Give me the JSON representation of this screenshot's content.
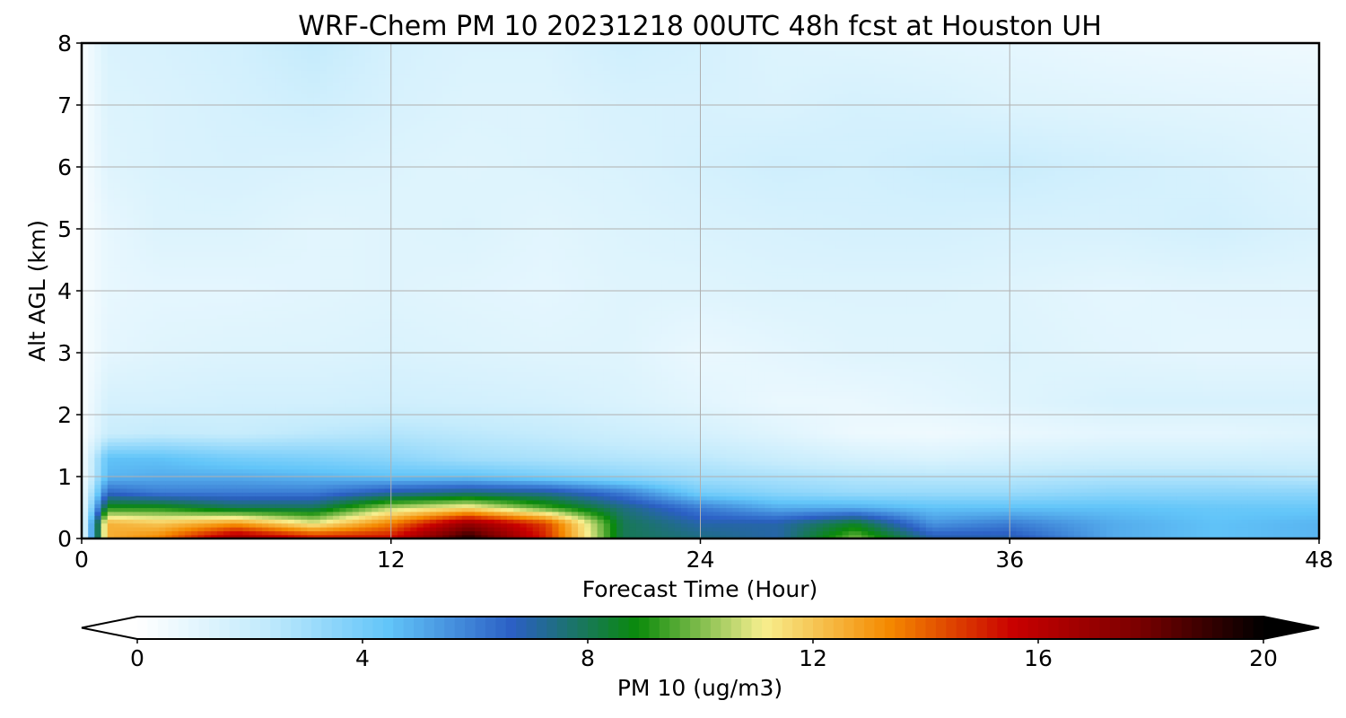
{
  "chart_data": {
    "type": "heatmap",
    "title": "WRF-Chem PM 10  20231218 00UTC 48h fcst at Houston UH",
    "xlabel": "Forecast Time (Hour)",
    "ylabel": "Alt AGL (km)",
    "xlim": [
      0,
      48
    ],
    "ylim": [
      0,
      8
    ],
    "xticks": [
      0,
      12,
      24,
      36,
      48
    ],
    "yticks": [
      0,
      1,
      2,
      3,
      4,
      5,
      6,
      7,
      8
    ],
    "grid": true,
    "colorbar": {
      "label": "PM 10  (ug/m3)",
      "range": [
        0,
        20
      ],
      "ticks": [
        0,
        4,
        8,
        12,
        16,
        20
      ],
      "extend": "both",
      "colors": [
        "#ffffff",
        "#c4ebfc",
        "#62c5f9",
        "#2b5fc4",
        "#0a8a0a",
        "#f7ef8f",
        "#f58a00",
        "#c90000",
        "#7a0000",
        "#000000"
      ]
    },
    "x_hours": [
      0,
      1,
      3,
      6,
      9,
      12,
      15,
      18,
      21,
      24,
      27,
      30,
      33,
      36,
      40,
      44,
      48
    ],
    "z_km": [
      0,
      0.25,
      0.5,
      0.75,
      1.0,
      1.3,
      1.7,
      2.2,
      3.0,
      4.0,
      5.0,
      6.0,
      7.0,
      8.0
    ],
    "values": [
      [
        0.4,
        12.5,
        13.5,
        17.0,
        15.5,
        15.5,
        19.5,
        15.0,
        8.0,
        7.5,
        7.0,
        10.0,
        7.0,
        7.0,
        5.0,
        4.5,
        4.8
      ],
      [
        0.4,
        12.5,
        12.0,
        13.0,
        11.0,
        13.5,
        17.0,
        14.5,
        8.0,
        7.0,
        7.0,
        8.5,
        5.5,
        6.0,
        5.0,
        4.5,
        4.8
      ],
      [
        0.4,
        9.0,
        9.0,
        8.0,
        8.0,
        10.5,
        11.5,
        9.5,
        7.5,
        6.0,
        5.0,
        5.0,
        4.5,
        4.5,
        4.5,
        4.3,
        4.3
      ],
      [
        0.4,
        6.5,
        6.0,
        6.0,
        6.0,
        7.0,
        7.5,
        7.2,
        6.0,
        4.0,
        3.5,
        3.2,
        3.2,
        3.2,
        3.5,
        3.5,
        3.5
      ],
      [
        0.3,
        4.8,
        5.0,
        5.0,
        4.8,
        4.5,
        4.5,
        4.0,
        3.5,
        3.0,
        2.8,
        2.6,
        2.5,
        2.5,
        2.7,
        2.7,
        2.5
      ],
      [
        0.3,
        4.5,
        4.5,
        4.0,
        3.8,
        3.5,
        3.0,
        2.8,
        2.6,
        2.4,
        2.0,
        1.6,
        1.4,
        1.6,
        1.8,
        1.8,
        1.8
      ],
      [
        0.2,
        2.0,
        2.2,
        2.1,
        2.4,
        2.6,
        2.4,
        2.2,
        1.9,
        1.6,
        1.2,
        0.7,
        0.6,
        0.8,
        1.0,
        1.0,
        1.2
      ],
      [
        0.2,
        1.6,
        1.6,
        1.7,
        1.7,
        1.8,
        1.7,
        1.6,
        1.4,
        1.1,
        0.8,
        0.8,
        1.0,
        1.2,
        1.5,
        1.5,
        1.5
      ],
      [
        0.2,
        1.0,
        1.2,
        1.3,
        1.3,
        1.4,
        1.3,
        1.2,
        1.2,
        0.8,
        1.0,
        1.2,
        1.2,
        1.3,
        1.1,
        1.0,
        1.0
      ],
      [
        0.2,
        0.9,
        1.0,
        1.0,
        1.1,
        1.2,
        1.1,
        1.0,
        1.2,
        1.2,
        1.3,
        1.3,
        1.3,
        1.2,
        1.0,
        1.1,
        1.1
      ],
      [
        0.2,
        0.9,
        1.3,
        1.3,
        1.1,
        1.2,
        1.3,
        1.1,
        1.3,
        1.4,
        1.5,
        1.6,
        1.6,
        1.5,
        1.5,
        1.7,
        1.4
      ],
      [
        0.2,
        1.2,
        1.4,
        1.5,
        1.4,
        1.3,
        1.2,
        1.3,
        1.4,
        1.6,
        1.8,
        1.7,
        1.9,
        2.0,
        1.7,
        1.5,
        1.2
      ],
      [
        0.2,
        1.3,
        1.4,
        1.6,
        1.8,
        1.5,
        1.3,
        1.3,
        1.5,
        1.5,
        1.4,
        1.6,
        1.5,
        1.3,
        1.2,
        1.1,
        1.0
      ],
      [
        0.2,
        1.4,
        1.5,
        1.7,
        2.2,
        1.6,
        1.4,
        1.4,
        1.8,
        1.6,
        1.3,
        1.2,
        1.1,
        1.0,
        0.8,
        0.7,
        0.6
      ]
    ]
  }
}
